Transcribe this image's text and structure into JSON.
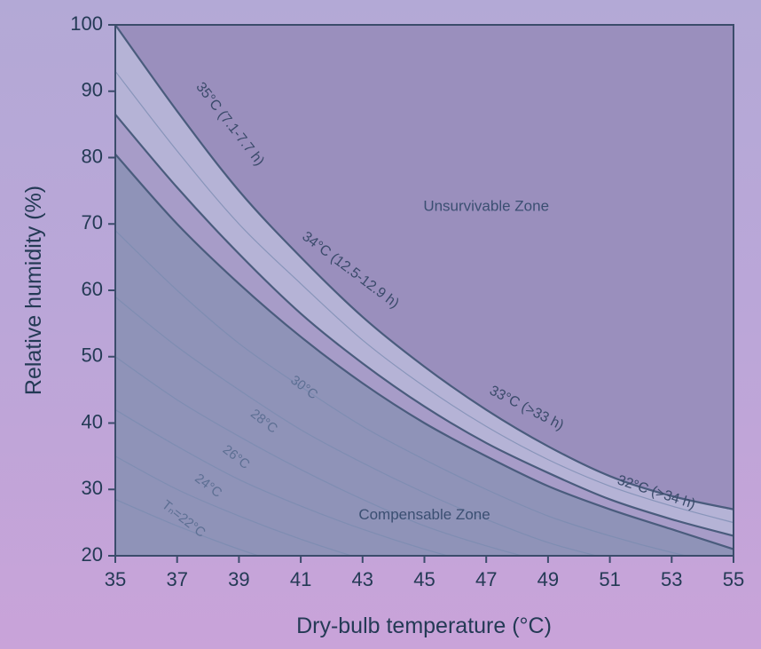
{
  "chart_data": {
    "type": "line",
    "xlabel": "Dry-bulb temperature (°C)",
    "ylabel": "Relative humidity (%)",
    "xlim": [
      35,
      55
    ],
    "ylim": [
      20,
      100
    ],
    "x_ticks": [
      35,
      37,
      39,
      41,
      43,
      45,
      47,
      49,
      51,
      53,
      55
    ],
    "y_ticks": [
      20,
      30,
      40,
      50,
      60,
      70,
      80,
      90,
      100
    ],
    "grid": false,
    "colors": {
      "unsurvivable": "#9a8fbd",
      "band": "#b5b3d6",
      "compensable": "#8f93b8",
      "frame": "#3b4c6b",
      "boundary_line": "#4a5c7d",
      "faint_line": "#7a8bb0"
    },
    "zones": [
      {
        "name": "Unsurvivable Zone",
        "x": 47,
        "y": 72
      },
      {
        "name": "Compensable Zone",
        "x": 45,
        "y": 25.5
      }
    ],
    "series": [
      {
        "name": "35°C (7.1-7.7 h)",
        "wetbulb": 35,
        "style": "boundary",
        "x": [
          35,
          37,
          39,
          41,
          43,
          45,
          47,
          49,
          51,
          53,
          55
        ],
        "y": [
          100,
          87,
          75,
          65,
          56,
          48.5,
          42,
          36.5,
          32,
          29,
          27
        ]
      },
      {
        "name": "34°C (12.5-12.9 h)",
        "wetbulb": 34,
        "style": "faint",
        "x": [
          35,
          37,
          39,
          41,
          43,
          45,
          47,
          49,
          51,
          53,
          55
        ],
        "y": [
          93,
          81,
          70,
          61,
          52.5,
          45.5,
          39.5,
          34.5,
          30.5,
          27.5,
          25
        ]
      },
      {
        "name": "33°C (>33 h)",
        "wetbulb": 33,
        "style": "boundary",
        "x": [
          35,
          37,
          39,
          41,
          43,
          45,
          47,
          49,
          51,
          53,
          55
        ],
        "y": [
          86.5,
          75.5,
          65.5,
          56.5,
          49,
          42.5,
          37,
          32.5,
          28.5,
          25.5,
          23
        ]
      },
      {
        "name": "32°C (>34 h)",
        "wetbulb": 32,
        "style": "boundary",
        "x": [
          35,
          37,
          39,
          41,
          43,
          45,
          47,
          49,
          51,
          53,
          55
        ],
        "y": [
          80.5,
          70,
          61,
          53,
          46,
          40,
          35,
          30.5,
          27,
          24,
          21
        ]
      },
      {
        "name": "30°C",
        "wetbulb": 30,
        "style": "faint",
        "x": [
          35,
          37,
          39,
          41,
          43,
          45,
          47,
          49,
          51,
          53,
          55
        ],
        "y": [
          69,
          60,
          52,
          45.5,
          39.5,
          34.5,
          30,
          26,
          23,
          20.5,
          18.5
        ]
      },
      {
        "name": "28°C",
        "wetbulb": 28,
        "style": "faint",
        "x": [
          35,
          37,
          39,
          41,
          43,
          45,
          47,
          49,
          51,
          53
        ],
        "y": [
          59,
          51.5,
          45,
          39,
          34,
          29.5,
          25.5,
          22,
          19.5,
          17.5
        ]
      },
      {
        "name": "26°C",
        "wetbulb": 26,
        "style": "faint",
        "x": [
          35,
          37,
          39,
          41,
          43,
          45,
          47,
          49,
          51
        ],
        "y": [
          50,
          43.5,
          38,
          33,
          28.5,
          24.5,
          21.5,
          19,
          17
        ]
      },
      {
        "name": "24°C",
        "wetbulb": 24,
        "style": "faint",
        "x": [
          35,
          37,
          39,
          41,
          43,
          45,
          47,
          49
        ],
        "y": [
          42,
          36.5,
          31.5,
          27.5,
          24,
          21,
          18.5,
          16.5
        ]
      },
      {
        "name": "Tₙ=22°C",
        "wetbulb": 22,
        "style": "faint",
        "x": [
          35,
          37,
          39,
          41,
          43,
          45,
          47
        ],
        "y": [
          35,
          30,
          26,
          22.5,
          19.5,
          17,
          15
        ]
      },
      {
        "name": "",
        "wetbulb": 20,
        "style": "faint",
        "x": [
          35,
          37,
          39,
          41,
          43,
          45
        ],
        "y": [
          28.5,
          24.5,
          21,
          18,
          15.5,
          13.5
        ]
      }
    ],
    "annotations": [
      {
        "text": "35°C (7.1-7.7 h)",
        "x": 38.7,
        "y": 85,
        "angle": 52
      },
      {
        "text": "34°C (12.5-12.9 h)",
        "x": 42.6,
        "y": 63,
        "angle": 37
      },
      {
        "text": "33°C (>33 h)",
        "x": 48.3,
        "y": 42.2,
        "angle": 27
      },
      {
        "text": "32°C (>34 h)",
        "x": 52.5,
        "y": 29.5,
        "angle": 18
      },
      {
        "text": "30°C",
        "x": 41.1,
        "y": 45.3,
        "angle": 37
      },
      {
        "text": "28°C",
        "x": 39.8,
        "y": 40.2,
        "angle": 38
      },
      {
        "text": "26°C",
        "x": 38.9,
        "y": 34.8,
        "angle": 38
      },
      {
        "text": "24°C",
        "x": 38,
        "y": 30.5,
        "angle": 37
      },
      {
        "text": "Tₙ=22°C",
        "x": 37.2,
        "y": 25.5,
        "angle": 38
      }
    ]
  }
}
